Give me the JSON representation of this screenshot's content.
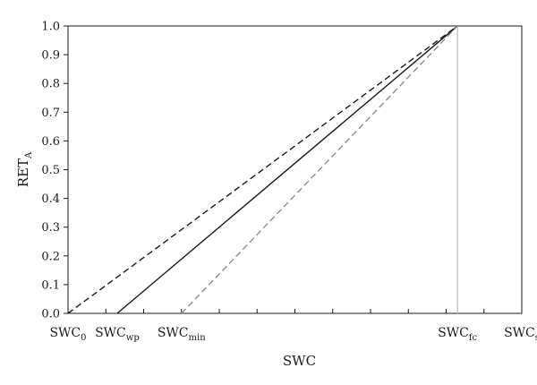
{
  "chart_data": {
    "type": "line",
    "title": "",
    "xlabel": "SWC",
    "ylabel": {
      "main": "RET",
      "sub": "A"
    },
    "ylim": [
      0,
      1.0
    ],
    "yticks": [
      0.0,
      0.1,
      0.2,
      0.3,
      0.4,
      0.5,
      0.6,
      0.7,
      0.8,
      0.9,
      1.0
    ],
    "ytick_labels": [
      "0.0",
      "0.1",
      "0.2",
      "0.3",
      "0.4",
      "0.5",
      "0.6",
      "0.7",
      "0.8",
      "0.9",
      "1.0"
    ],
    "xlim": [
      0,
      12
    ],
    "xticks": [
      0,
      1,
      2,
      3,
      4,
      5,
      6,
      7,
      8,
      9,
      10,
      11,
      12
    ],
    "x_categories": [
      {
        "main": "SWC",
        "sub": "0",
        "x": 0
      },
      {
        "main": "SWC",
        "sub": "wp",
        "x": 1.3
      },
      {
        "main": "SWC",
        "sub": "min",
        "x": 3.0
      },
      {
        "main": "SWC",
        "sub": "fc",
        "x": 10.3
      },
      {
        "main": "SWC",
        "sub": "s",
        "x": 12
      }
    ],
    "series": [
      {
        "style": "dashed",
        "color": "#1a1a1a",
        "x": [
          0,
          10.3
        ],
        "y": [
          0.0,
          1.0
        ]
      },
      {
        "style": "solid",
        "color": "#1a1a1a",
        "x": [
          1.3,
          10.3
        ],
        "y": [
          0.0,
          1.0
        ]
      },
      {
        "style": "dashed",
        "color": "#8c8c8c",
        "x": [
          3.0,
          10.3
        ],
        "y": [
          0.0,
          1.0
        ]
      }
    ],
    "vlines": [
      {
        "x": 10.3,
        "ymin": 0.0,
        "ymax": 1.0,
        "color": "#b8b8b8"
      }
    ],
    "grid": false,
    "legend": "none"
  }
}
